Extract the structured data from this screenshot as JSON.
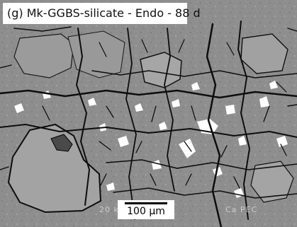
{
  "image": {
    "panel_label": "(g) Mk-GGBS-silicate - Endo - 88 d",
    "scale_bar": "100 µm",
    "watermark_left": "20 k",
    "watermark_right": "Ca PEC",
    "colors": {
      "matrix": "#8b8b8b",
      "grain": "#a9a9a9",
      "crack": "#0d0d0d",
      "particle": "#ffffff"
    }
  }
}
